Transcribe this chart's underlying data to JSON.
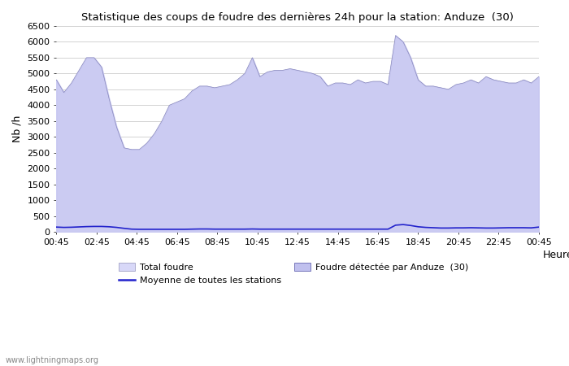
{
  "title": "Statistique des coups de foudre des dernières 24h pour la station: Anduze  (30)",
  "xlabel": "Heure",
  "ylabel": "Nb /h",
  "watermark": "www.lightningmaps.org",
  "x_ticks": [
    "00:45",
    "02:45",
    "04:45",
    "06:45",
    "08:45",
    "10:45",
    "12:45",
    "14:45",
    "16:45",
    "18:45",
    "20:45",
    "22:45",
    "00:45"
  ],
  "ylim": [
    0,
    6500
  ],
  "yticks": [
    0,
    500,
    1000,
    1500,
    2000,
    2500,
    3000,
    3500,
    4000,
    4500,
    5000,
    5500,
    6000,
    6500
  ],
  "total_foudre_color": "#d8d8f8",
  "anduze_color": "#c0c0ee",
  "moyenne_color": "#2222cc",
  "foudre_data": [
    4800,
    4400,
    4700,
    5100,
    5500,
    5500,
    5200,
    4200,
    3300,
    2650,
    2600,
    2600,
    2800,
    3100,
    3500,
    4000,
    4100,
    4200,
    4450,
    4600,
    4600,
    4550,
    4600,
    4650,
    4800,
    5000,
    5500,
    4900,
    5050,
    5100,
    5100,
    5150,
    5100,
    5050,
    5000,
    4900,
    4600,
    4700,
    4700,
    4650,
    4800,
    4700,
    4750,
    4750,
    4650,
    6200,
    6000,
    5500,
    4800,
    4600,
    4600,
    4550,
    4500,
    4650,
    4700,
    4800,
    4700,
    4900,
    4800,
    4750,
    4700,
    4700,
    4800,
    4700,
    4900
  ],
  "moyenne_data": [
    150,
    140,
    145,
    155,
    165,
    170,
    170,
    160,
    140,
    110,
    85,
    80,
    80,
    80,
    80,
    80,
    80,
    80,
    85,
    90,
    90,
    85,
    85,
    85,
    85,
    85,
    90,
    85,
    85,
    85,
    85,
    85,
    85,
    85,
    85,
    85,
    85,
    85,
    85,
    85,
    85,
    85,
    85,
    85,
    85,
    210,
    230,
    200,
    160,
    140,
    130,
    120,
    120,
    125,
    125,
    130,
    125,
    120,
    120,
    125,
    130,
    130,
    130,
    125,
    150
  ],
  "legend_total_foudre": "Total foudre",
  "legend_anduze": "Foudre détectée par Anduze  (30)",
  "legend_moyenne": "Moyenne de toutes les stations"
}
